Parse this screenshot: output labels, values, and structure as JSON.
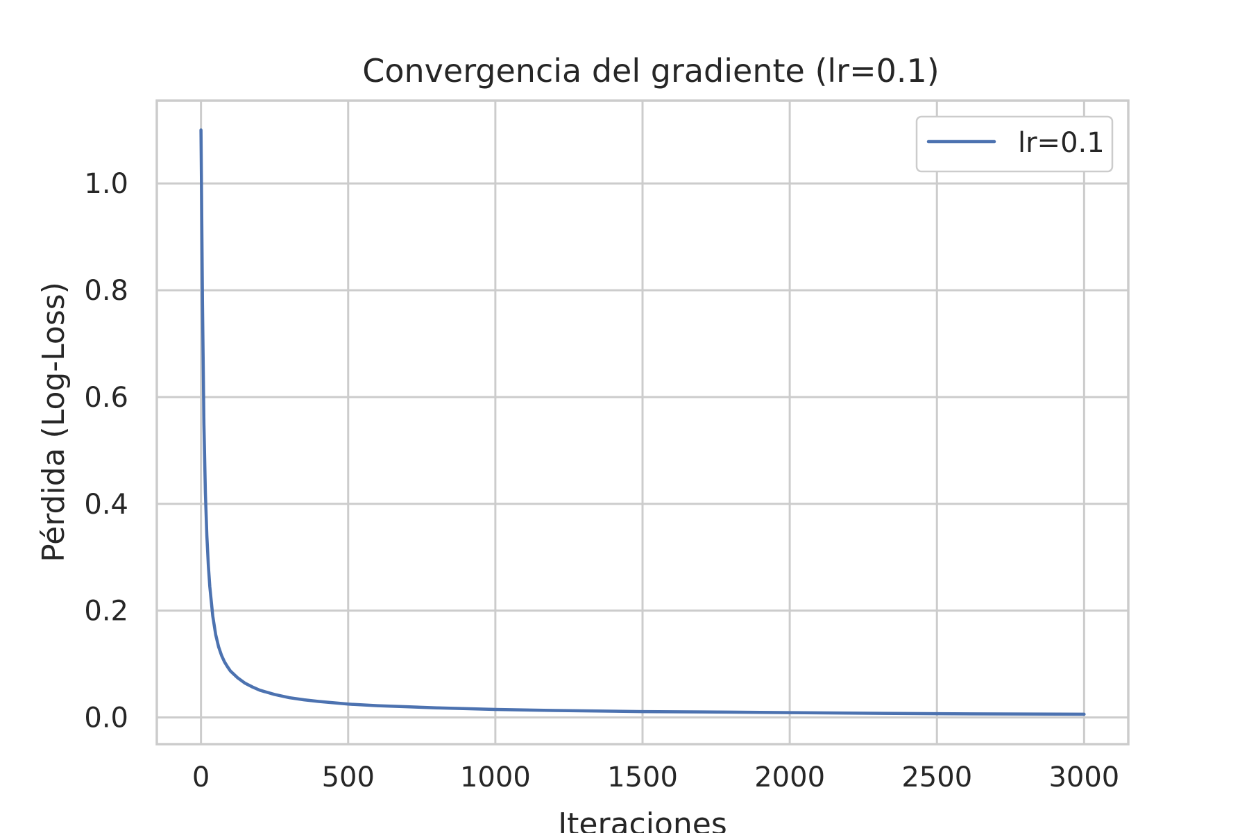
{
  "chart_data": {
    "type": "line",
    "title": "Convergencia del gradiente (lr=0.1)",
    "xlabel": "Iteraciones",
    "ylabel": "Pérdida (Log-Loss)",
    "xlim": [
      -150,
      3150
    ],
    "ylim": [
      -0.05,
      1.155
    ],
    "xticks": [
      0,
      500,
      1000,
      1500,
      2000,
      2500,
      3000
    ],
    "xtick_labels": [
      "0",
      "500",
      "1000",
      "1500",
      "2000",
      "2500",
      "3000"
    ],
    "yticks": [
      0.0,
      0.2,
      0.4,
      0.6,
      0.8,
      1.0
    ],
    "ytick_labels": [
      "0.0",
      "0.2",
      "0.4",
      "0.6",
      "0.8",
      "1.0"
    ],
    "grid": true,
    "legend_position": "top-right",
    "series": [
      {
        "name": "lr=0.1",
        "color": "#4c72b0",
        "x": [
          0,
          2,
          5,
          10,
          15,
          20,
          25,
          30,
          40,
          50,
          60,
          70,
          80,
          90,
          100,
          125,
          150,
          175,
          200,
          250,
          300,
          350,
          400,
          500,
          600,
          700,
          800,
          1000,
          1200,
          1500,
          1800,
          2000,
          2500,
          3000
        ],
        "y": [
          1.1,
          0.98,
          0.78,
          0.55,
          0.42,
          0.34,
          0.285,
          0.245,
          0.19,
          0.155,
          0.132,
          0.116,
          0.104,
          0.095,
          0.087,
          0.074,
          0.064,
          0.057,
          0.051,
          0.043,
          0.037,
          0.033,
          0.03,
          0.025,
          0.022,
          0.02,
          0.018,
          0.015,
          0.013,
          0.011,
          0.01,
          0.009,
          0.007,
          0.006
        ]
      }
    ]
  }
}
